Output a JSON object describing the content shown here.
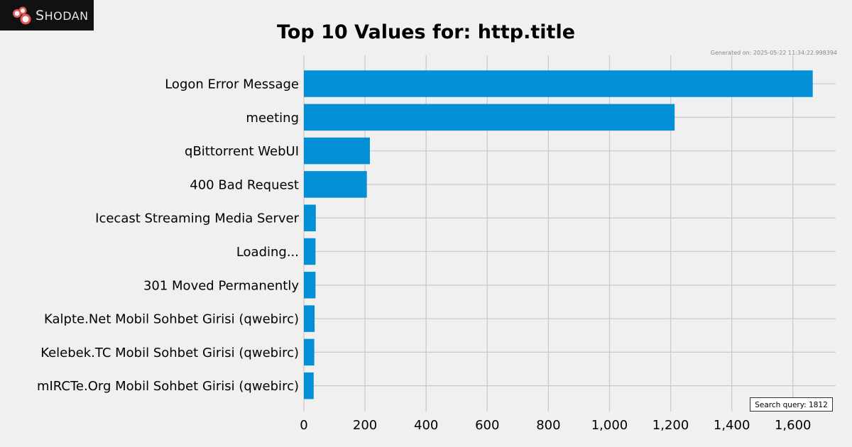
{
  "brand": {
    "name": "Shodan",
    "icon": "shodan-logo-icon",
    "logo_text_first": "S",
    "logo_text_rest": "HODAN"
  },
  "chart_data": {
    "type": "bar",
    "orientation": "horizontal",
    "title": "Top 10 Values for: http.title",
    "generated_on": "Generated on: 2025-05-22 11:34:22.998394",
    "search_query_label": "Search query: 1812",
    "categories": [
      "Logon Error Message",
      "meeting",
      "qBittorrent WebUI",
      "400 Bad Request",
      "Icecast Streaming Media Server",
      "Loading...",
      "301 Moved Permanently",
      "Kalpte.Net Mobil Sohbet Girisi (qwebirc)",
      "Kelebek.TC Mobil Sohbet Girisi (qwebirc)",
      "mIRCTe.Org Mobil Sohbet Girisi (qwebirc)"
    ],
    "values": [
      1665,
      1213,
      216,
      206,
      39,
      38,
      38,
      35,
      34,
      32
    ],
    "xlim": [
      0,
      1740
    ],
    "xticks": [
      0,
      200,
      400,
      600,
      800,
      1000,
      1200,
      1400,
      1600
    ],
    "xtick_labels": [
      "0",
      "200",
      "400",
      "600",
      "800",
      "1,000",
      "1,200",
      "1,400",
      "1,600"
    ],
    "grid": true,
    "bar_color": "#038fd6",
    "grid_color": "#cbcbcb",
    "background": "#f0f0f0"
  }
}
